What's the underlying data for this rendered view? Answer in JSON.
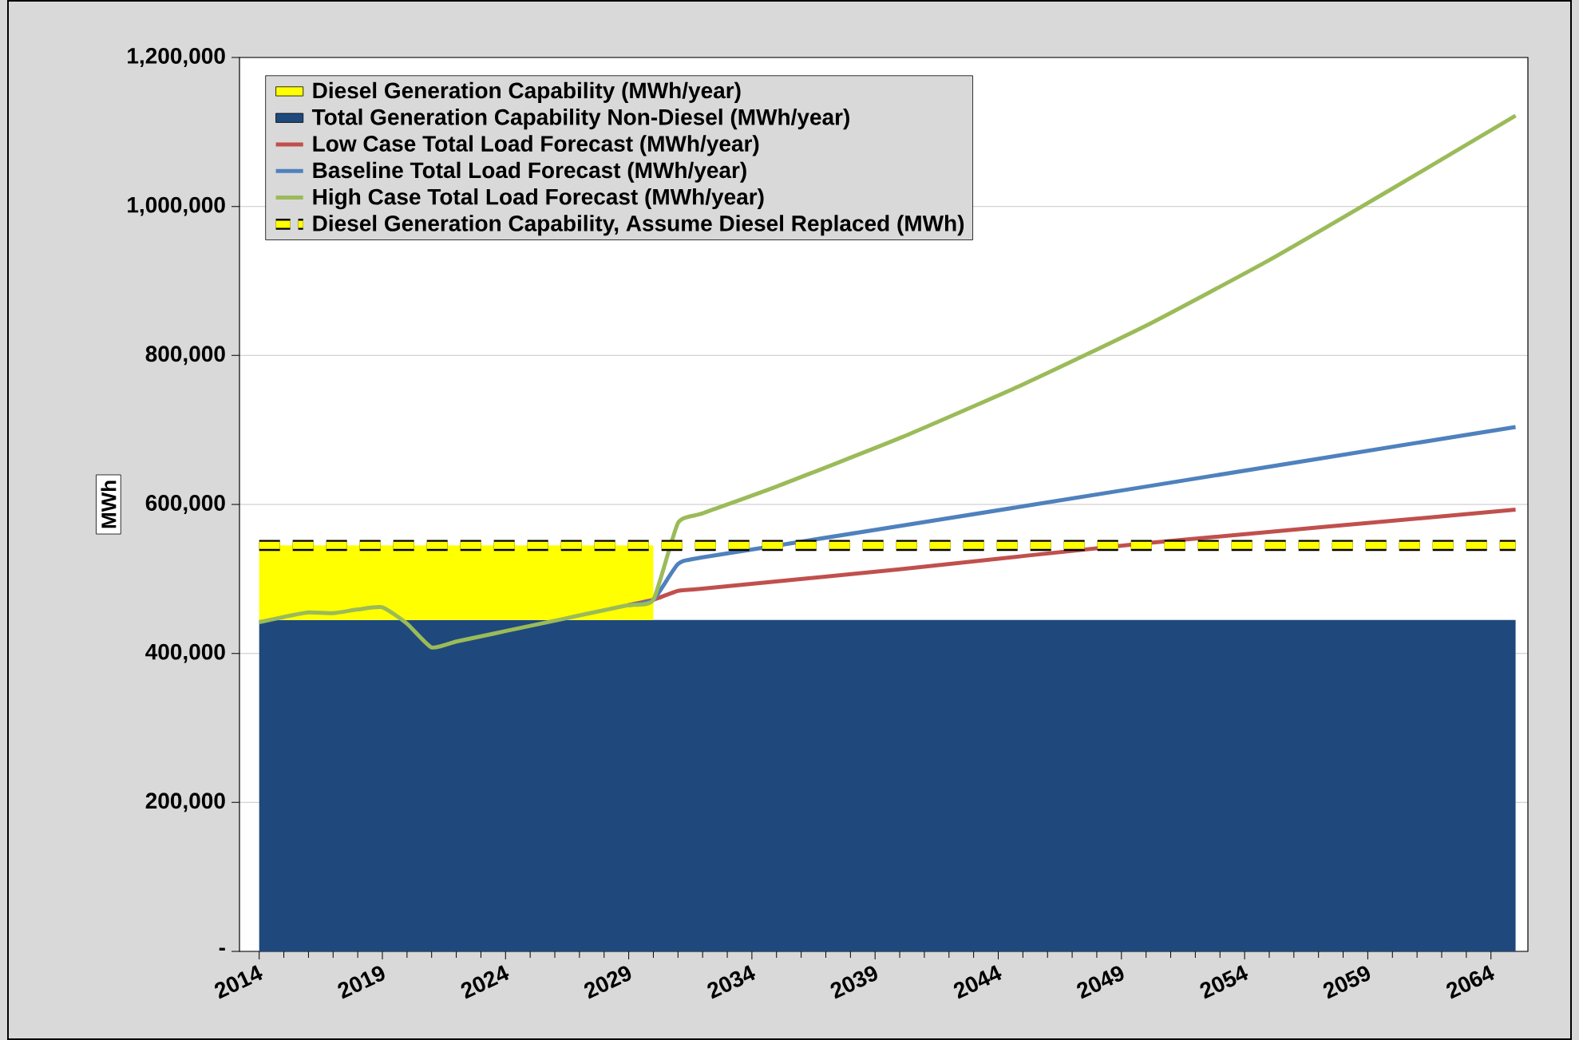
{
  "chart_data": {
    "type": "line",
    "ylabel": "MWh",
    "x": [
      2014,
      2030,
      2065
    ],
    "xlim": [
      2013.2,
      2065.5
    ],
    "xticks": [
      2014,
      2019,
      2024,
      2029,
      2034,
      2039,
      2044,
      2049,
      2054,
      2059,
      2064
    ],
    "ylim": [
      0,
      1200000
    ],
    "yticks": [
      {
        "value": 0,
        "label": "-"
      },
      {
        "value": 200000,
        "label": "200,000"
      },
      {
        "value": 400000,
        "label": "400,000"
      },
      {
        "value": 600000,
        "label": "600,000"
      },
      {
        "value": 800000,
        "label": "800,000"
      },
      {
        "value": 1000000,
        "label": "1,000,000"
      },
      {
        "value": 1200000,
        "label": "1,200,000"
      }
    ],
    "grid": "y",
    "legend": "top left",
    "stacked": true,
    "series": [
      {
        "name": "Total Generation Capability Non-Diesel (MWh/year)",
        "type": "area",
        "color": "#1f497d",
        "values": [
          445000,
          445000,
          445000
        ]
      },
      {
        "name": "Diesel Generation Capability (MWh/year)",
        "type": "area",
        "color": "#ffff00",
        "values": [
          100000,
          100000,
          null
        ]
      },
      {
        "name": "Low Case Total Load Forecast (MWh/year)",
        "color": "#c0504d",
        "x": [
          2029,
          2030,
          2031,
          2032,
          2040,
          2050,
          2065
        ],
        "values": [
          465000,
          472000,
          484000,
          487000,
          513000,
          548000,
          593000
        ]
      },
      {
        "name": "Baseline Total Load Forecast (MWh/year)",
        "color": "#4f81bd",
        "x": [
          2029,
          2030,
          2031,
          2032,
          2040,
          2050,
          2065
        ],
        "values": [
          465000,
          472000,
          520000,
          529000,
          571000,
          624000,
          704000
        ]
      },
      {
        "name": "High Case Total Load Forecast (MWh/year)",
        "color": "#9bbb59",
        "x": [
          2014,
          2015,
          2016,
          2017,
          2018,
          2019,
          2020,
          2021,
          2022,
          2023,
          2024,
          2025,
          2026,
          2027,
          2028,
          2029,
          2030,
          2031,
          2032,
          2035,
          2040,
          2045,
          2050,
          2055,
          2060,
          2065
        ],
        "values": [
          442000,
          449000,
          455000,
          454000,
          459000,
          462000,
          440000,
          408000,
          416000,
          423000,
          430000,
          437000,
          444000,
          451000,
          458000,
          465000,
          472000,
          575000,
          588000,
          624000,
          689000,
          761000,
          840000,
          928000,
          1024000,
          1122000
        ]
      },
      {
        "name": "Diesel Generation Capability, Assume Diesel Replaced (MWh)",
        "color": "#ffff00",
        "line_style": "dashed",
        "x": [
          2014,
          2065
        ],
        "values": [
          545000,
          545000
        ]
      }
    ]
  }
}
